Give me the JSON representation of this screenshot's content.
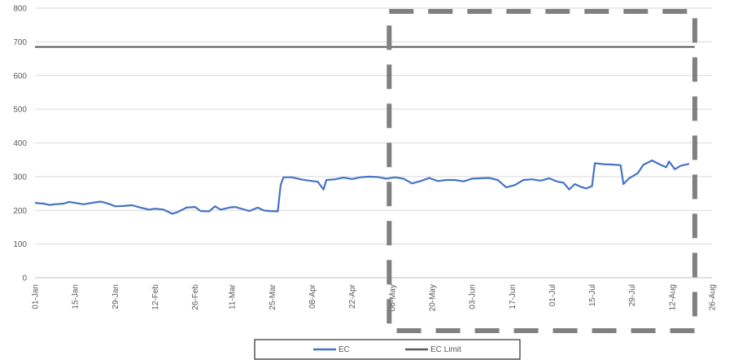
{
  "chart_data": {
    "type": "line",
    "x_start": "2022-01-01",
    "xlim": [
      "01-Jan",
      "26-Aug"
    ],
    "x_tick_labels": [
      "01-Jan",
      "15-Jan",
      "29-Jan",
      "12-Feb",
      "26-Feb",
      "11-Mar",
      "25-Mar",
      "08-Apr",
      "22-Apr",
      "06-May",
      "20-May",
      "03-Jun",
      "17-Jun",
      "01-Jul",
      "15-Jul",
      "29-Jul",
      "12-Aug",
      "26-Aug"
    ],
    "ylim": [
      0,
      800
    ],
    "y_ticks": [
      "0",
      "100",
      "200",
      "300",
      "400",
      "500",
      "600",
      "700",
      "800"
    ],
    "grid": "horizontal",
    "legend_position": "bottom",
    "series": [
      {
        "name": "EC",
        "color": "#4472C4",
        "points": [
          [
            "01-Jan",
            222
          ],
          [
            "04-Jan",
            220
          ],
          [
            "06-Jan",
            216
          ],
          [
            "08-Jan",
            218
          ],
          [
            "11-Jan",
            220
          ],
          [
            "13-Jan",
            225
          ],
          [
            "15-Jan",
            222
          ],
          [
            "18-Jan",
            218
          ],
          [
            "21-Jan",
            222
          ],
          [
            "24-Jan",
            226
          ],
          [
            "27-Jan",
            219
          ],
          [
            "29-Jan",
            212
          ],
          [
            "01-Feb",
            213
          ],
          [
            "04-Feb",
            215
          ],
          [
            "07-Feb",
            208
          ],
          [
            "10-Feb",
            202
          ],
          [
            "12-Feb",
            205
          ],
          [
            "15-Feb",
            202
          ],
          [
            "18-Feb",
            190
          ],
          [
            "20-Feb",
            195
          ],
          [
            "23-Feb",
            208
          ],
          [
            "26-Feb",
            210
          ],
          [
            "28-Feb",
            198
          ],
          [
            "03-Mar",
            197
          ],
          [
            "05-Mar",
            212
          ],
          [
            "07-Mar",
            202
          ],
          [
            "10-Mar",
            208
          ],
          [
            "12-Mar",
            210
          ],
          [
            "15-Mar",
            203
          ],
          [
            "17-Mar",
            198
          ],
          [
            "20-Mar",
            208
          ],
          [
            "22-Mar",
            200
          ],
          [
            "24-Mar",
            198
          ],
          [
            "27-Mar",
            197
          ],
          [
            "28-Mar",
            275
          ],
          [
            "29-Mar",
            298
          ],
          [
            "01-Apr",
            298
          ],
          [
            "04-Apr",
            292
          ],
          [
            "07-Apr",
            288
          ],
          [
            "10-Apr",
            285
          ],
          [
            "12-Apr",
            262
          ],
          [
            "13-Apr",
            290
          ],
          [
            "16-Apr",
            292
          ],
          [
            "19-Apr",
            297
          ],
          [
            "22-Apr",
            293
          ],
          [
            "25-Apr",
            298
          ],
          [
            "28-Apr",
            300
          ],
          [
            "01-May",
            299
          ],
          [
            "04-May",
            294
          ],
          [
            "07-May",
            298
          ],
          [
            "10-May",
            294
          ],
          [
            "13-May",
            280
          ],
          [
            "16-May",
            287
          ],
          [
            "19-May",
            296
          ],
          [
            "22-May",
            287
          ],
          [
            "25-May",
            290
          ],
          [
            "28-May",
            290
          ],
          [
            "31-May",
            286
          ],
          [
            "03-Jun",
            294
          ],
          [
            "06-Jun",
            295
          ],
          [
            "09-Jun",
            296
          ],
          [
            "12-Jun",
            290
          ],
          [
            "15-Jun",
            268
          ],
          [
            "18-Jun",
            275
          ],
          [
            "21-Jun",
            290
          ],
          [
            "24-Jun",
            292
          ],
          [
            "27-Jun",
            288
          ],
          [
            "30-Jun",
            295
          ],
          [
            "03-Jul",
            285
          ],
          [
            "05-Jul",
            282
          ],
          [
            "07-Jul",
            262
          ],
          [
            "09-Jul",
            278
          ],
          [
            "11-Jul",
            270
          ],
          [
            "13-Jul",
            265
          ],
          [
            "15-Jul",
            272
          ],
          [
            "16-Jul",
            340
          ],
          [
            "19-Jul",
            337
          ],
          [
            "22-Jul",
            336
          ],
          [
            "25-Jul",
            334
          ],
          [
            "26-Jul",
            278
          ],
          [
            "28-Jul",
            295
          ],
          [
            "31-Jul",
            310
          ],
          [
            "02-Aug",
            335
          ],
          [
            "05-Aug",
            348
          ],
          [
            "08-Aug",
            335
          ],
          [
            "10-Aug",
            328
          ],
          [
            "11-Aug",
            345
          ],
          [
            "13-Aug",
            322
          ],
          [
            "15-Aug",
            332
          ],
          [
            "18-Aug",
            338
          ]
        ]
      },
      {
        "name": "EC Limit",
        "color": "#595959",
        "points": [
          [
            "01-Jan",
            685
          ],
          [
            "20-Aug",
            685
          ]
        ]
      }
    ],
    "highlight_box": {
      "style": "dashed",
      "color": "#808080",
      "from": "05-May",
      "to": "20-Aug"
    }
  }
}
